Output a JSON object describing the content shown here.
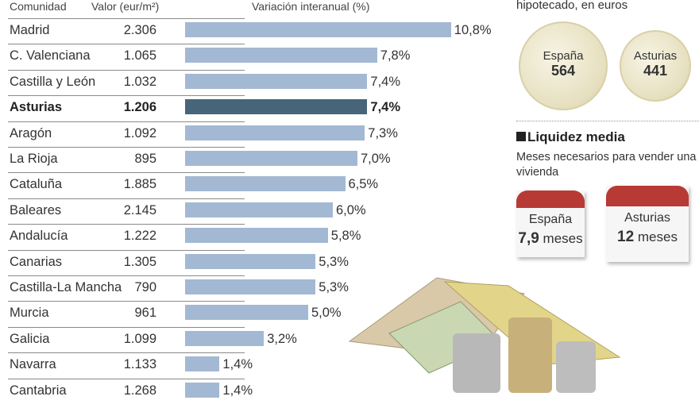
{
  "chart_data": {
    "type": "bar",
    "headers": {
      "name": "Comunidad",
      "value": "Valor (eur/m²)",
      "change": "Variación interanual (%)"
    },
    "highlight": "Asturias",
    "colors": {
      "bar": "#a3b8d3",
      "highlight": "#476579"
    },
    "rows": [
      {
        "name": "Madrid",
        "value": "2.306",
        "change": 10.8,
        "label": "10,8%"
      },
      {
        "name": "C. Valenciana",
        "value": "1.065",
        "change": 7.8,
        "label": "7,8%"
      },
      {
        "name": "Castilla y León",
        "value": "1.032",
        "change": 7.4,
        "label": "7,4%"
      },
      {
        "name": "Asturias",
        "value": "1.206",
        "change": 7.4,
        "label": "7,4%"
      },
      {
        "name": "Aragón",
        "value": "1.092",
        "change": 7.3,
        "label": "7,3%"
      },
      {
        "name": "La Rioja",
        "value": "895",
        "change": 7.0,
        "label": "7,0%"
      },
      {
        "name": "Cataluña",
        "value": "1.885",
        "change": 6.5,
        "label": "6,5%"
      },
      {
        "name": "Baleares",
        "value": "2.145",
        "change": 6.0,
        "label": "6,0%"
      },
      {
        "name": "Andalucía",
        "value": "1.222",
        "change": 5.8,
        "label": "5,8%"
      },
      {
        "name": "Canarias",
        "value": "1.305",
        "change": 5.3,
        "label": "5,3%"
      },
      {
        "name": "Castilla-La Mancha",
        "value": "790",
        "change": 5.3,
        "label": "5,3%"
      },
      {
        "name": "Murcia",
        "value": "961",
        "change": 5.0,
        "label": "5,0%"
      },
      {
        "name": "Galicia",
        "value": "1.099",
        "change": 3.2,
        "label": "3,2%"
      },
      {
        "name": "Navarra",
        "value": "1.133",
        "change": 1.4,
        "label": "1,4%"
      },
      {
        "name": "Cantabria",
        "value": "1.268",
        "change": 1.4,
        "label": "1,4%"
      }
    ]
  },
  "mortgage": {
    "subtitle": "hipotecado, en euros",
    "spain_label": "España",
    "spain_value": "564",
    "asturias_label": "Asturias",
    "asturias_value": "441"
  },
  "liquidity": {
    "title": "Liquidez media",
    "subtitle": "Meses necesarios para vender una vivienda",
    "spain_label": "España",
    "spain_value": "7,9",
    "asturias_label": "Asturias",
    "asturias_value": "12",
    "unit": "meses"
  }
}
